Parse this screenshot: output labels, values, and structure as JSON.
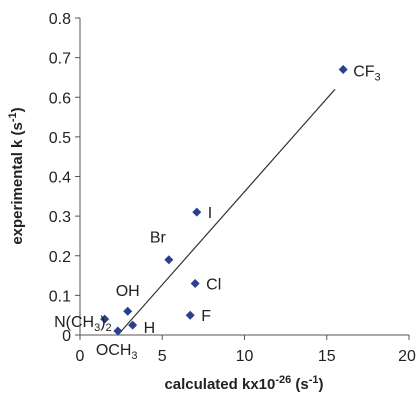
{
  "chart_data": {
    "type": "scatter",
    "title": "",
    "xlabel": {
      "main": "calculated kx10",
      "sup1": "-26",
      "mid": " (s",
      "sup2": "-1",
      "end": ")"
    },
    "ylabel": {
      "main": "experimental k (s",
      "sup": "-1",
      "end": ")"
    },
    "xlim": [
      0,
      20
    ],
    "ylim": [
      0,
      0.8
    ],
    "x_ticks": [
      "0",
      "5",
      "10",
      "15",
      "20"
    ],
    "y_ticks": [
      "0",
      "0.1",
      "0.2",
      "0.3",
      "0.4",
      "0.5",
      "0.6",
      "0.7",
      "0.8"
    ],
    "grid": false,
    "legend": "none",
    "marker_color": "#2a3f8f",
    "line_color": "#333333",
    "points": [
      {
        "label": "CF3",
        "label_main": "CF",
        "label_sub": "3",
        "x": 16.0,
        "y": 0.67
      },
      {
        "label": "I",
        "label_main": "I",
        "label_sub": "",
        "x": 7.1,
        "y": 0.31
      },
      {
        "label": "Br",
        "label_main": "Br",
        "label_sub": "",
        "x": 5.4,
        "y": 0.19
      },
      {
        "label": "Cl",
        "label_main": "Cl",
        "label_sub": "",
        "x": 7.0,
        "y": 0.13
      },
      {
        "label": "F",
        "label_main": "F",
        "label_sub": "",
        "x": 6.7,
        "y": 0.05
      },
      {
        "label": "OH",
        "label_main": "OH",
        "label_sub": "",
        "x": 2.9,
        "y": 0.06
      },
      {
        "label": "H",
        "label_main": "H",
        "label_sub": "",
        "x": 3.2,
        "y": 0.025
      },
      {
        "label": "N(CH3)2",
        "label_main": "N(CH",
        "label_sub": "3",
        "label_tail": ")2",
        "x": 1.5,
        "y": 0.04
      },
      {
        "label": "OCH3",
        "label_main": "OCH",
        "label_sub": "3",
        "x": 2.3,
        "y": 0.01
      }
    ],
    "trendline": {
      "x": [
        2.3,
        15.5
      ],
      "y": [
        0.0,
        0.62
      ]
    }
  }
}
